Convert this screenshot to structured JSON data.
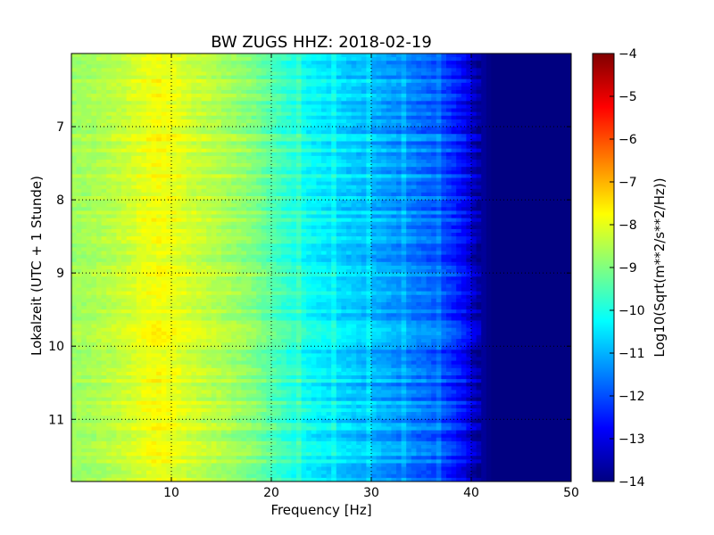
{
  "chart_data": {
    "type": "heatmap",
    "title": "BW ZUGS HHZ: 2018-02-19",
    "xlabel": "Frequency [Hz]",
    "ylabel": "Lokalzeit (UTC + 1 Stunde)",
    "xlim": [
      0,
      50
    ],
    "ylim": [
      11.85,
      6.0
    ],
    "x_ticks": [
      10,
      20,
      30,
      40,
      50
    ],
    "y_ticks": [
      7,
      8,
      9,
      10,
      11
    ],
    "grid": true,
    "colormap": "jet",
    "colorbar": {
      "label": "Log10(Sqrt(m**2/s**2/Hz))",
      "range": [
        -14,
        -4
      ],
      "ticks": [
        -4,
        -5,
        -6,
        -7,
        -8,
        -9,
        -10,
        -11,
        -12,
        -13,
        -14
      ]
    },
    "frequency_profile": {
      "frequency_hz": [
        0,
        2,
        5,
        7,
        8.5,
        10,
        12,
        15,
        18,
        21,
        24,
        27,
        30,
        33,
        36,
        38,
        39.5,
        40.5,
        42,
        50
      ],
      "log10_amplitude": [
        -8.7,
        -8.6,
        -8.3,
        -8.0,
        -7.8,
        -7.9,
        -8.2,
        -8.5,
        -8.9,
        -9.6,
        -10.2,
        -10.6,
        -10.9,
        -11.3,
        -11.7,
        -12.2,
        -12.8,
        -13.5,
        -14.0,
        -14.0
      ]
    }
  }
}
